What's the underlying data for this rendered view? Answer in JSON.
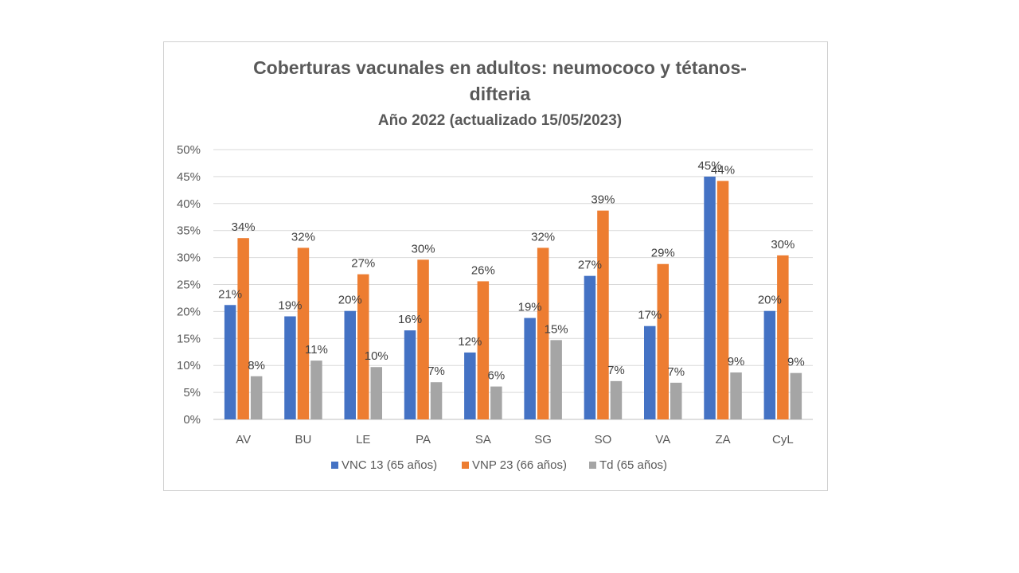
{
  "chart_data": {
    "type": "bar",
    "title_line1": "Coberturas vacunales en adultos: neumococo y tétanos-",
    "title_line2": "difteria",
    "subtitle": "Año 2022 (actualizado 15/05/2023)",
    "categories": [
      "AV",
      "BU",
      "LE",
      "PA",
      "SA",
      "SG",
      "SO",
      "VA",
      "ZA",
      "CyL"
    ],
    "ylim": [
      0,
      50
    ],
    "yticks": [
      0,
      5,
      10,
      15,
      20,
      25,
      30,
      35,
      40,
      45,
      50
    ],
    "ytick_labels": [
      "0%",
      "5%",
      "10%",
      "15%",
      "20%",
      "25%",
      "30%",
      "35%",
      "40%",
      "45%",
      "50%"
    ],
    "grid": true,
    "legend_position": "bottom",
    "series": [
      {
        "name": "VNC 13 (65 años)",
        "color": "#4472C4",
        "values": [
          21.2,
          19.1,
          20.1,
          16.5,
          12.4,
          18.8,
          26.6,
          17.3,
          45.0,
          20.1
        ],
        "labels": [
          "21%",
          "19%",
          "20%",
          "16%",
          "12%",
          "19%",
          "27%",
          "17%",
          "45%",
          "20%"
        ]
      },
      {
        "name": "VNP 23 (66 años)",
        "color": "#ED7D31",
        "values": [
          33.6,
          31.8,
          26.9,
          29.6,
          25.6,
          31.8,
          38.7,
          28.8,
          44.2,
          30.4
        ],
        "labels": [
          "34%",
          "32%",
          "27%",
          "30%",
          "26%",
          "32%",
          "39%",
          "29%",
          "44%",
          "30%"
        ]
      },
      {
        "name": "Td (65 años)",
        "color": "#A5A5A5",
        "values": [
          8.0,
          10.9,
          9.7,
          6.9,
          6.1,
          14.7,
          7.1,
          6.8,
          8.7,
          8.6
        ],
        "labels": [
          "8%",
          "11%",
          "10%",
          "7%",
          "6%",
          "15%",
          "7%",
          "7%",
          "9%",
          "9%"
        ]
      }
    ]
  }
}
